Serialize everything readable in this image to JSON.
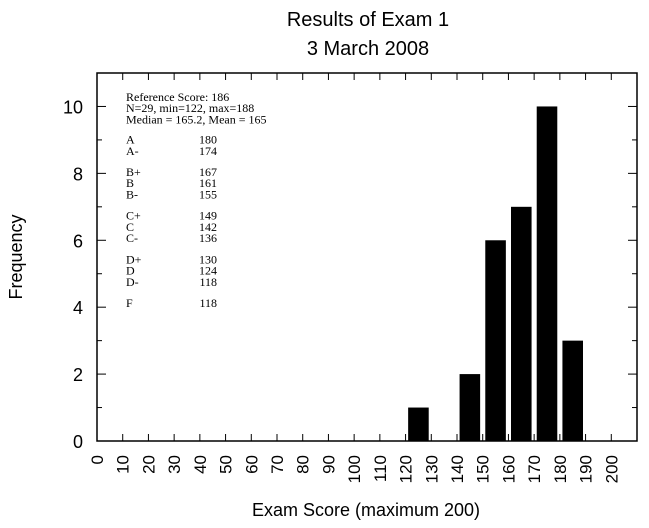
{
  "chart_data": {
    "type": "bar",
    "title": [
      "Results of Exam 1",
      "3 March 2008"
    ],
    "xlabel": "Exam Score (maximum 200)",
    "ylabel": "Frequency",
    "xlim": [
      0,
      210
    ],
    "ylim": [
      0,
      11
    ],
    "x_ticks": [
      "0",
      "10",
      "20",
      "30",
      "40",
      "50",
      "60",
      "70",
      "80",
      "90",
      "100",
      "110",
      "120",
      "130",
      "140",
      "150",
      "160",
      "170",
      "180",
      "190",
      "200"
    ],
    "y_ticks": [
      0,
      2,
      4,
      6,
      8,
      10
    ],
    "bar_width": 8,
    "bars": [
      {
        "x": 125,
        "value": 1
      },
      {
        "x": 145,
        "value": 2
      },
      {
        "x": 155,
        "value": 6
      },
      {
        "x": 165,
        "value": 7
      },
      {
        "x": 175,
        "value": 10
      },
      {
        "x": 185,
        "value": 3
      }
    ],
    "grid": false,
    "annotation": {
      "header": [
        "Reference Score: 186",
        "N=29, min=122, max=188",
        "Median = 165.2, Mean = 165"
      ],
      "grades": [
        [
          {
            "grade": "A",
            "cutoff": "180"
          },
          {
            "grade": "A-",
            "cutoff": "174"
          }
        ],
        [
          {
            "grade": "B+",
            "cutoff": "167"
          },
          {
            "grade": "B",
            "cutoff": "161"
          },
          {
            "grade": "B-",
            "cutoff": "155"
          }
        ],
        [
          {
            "grade": "C+",
            "cutoff": "149"
          },
          {
            "grade": "C",
            "cutoff": "142"
          },
          {
            "grade": "C-",
            "cutoff": "136"
          }
        ],
        [
          {
            "grade": "D+",
            "cutoff": "130"
          },
          {
            "grade": "D",
            "cutoff": "124"
          },
          {
            "grade": "D-",
            "cutoff": "118"
          }
        ],
        [
          {
            "grade": "F",
            "cutoff": "118"
          }
        ]
      ]
    }
  }
}
